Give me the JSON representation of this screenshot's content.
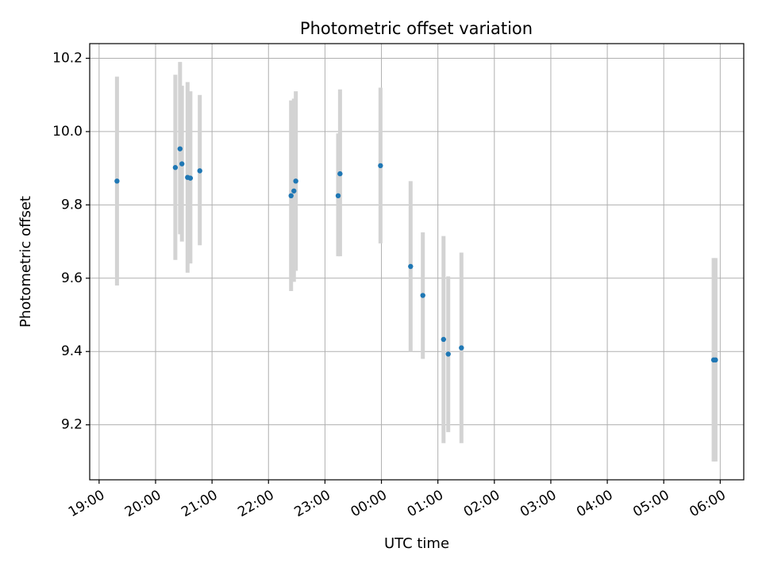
{
  "chart_data": {
    "type": "scatter",
    "title": "Photometric offset variation",
    "xlabel": "UTC time",
    "ylabel": "Photometric offset",
    "x_axis_kind": "time (hours, UTC)",
    "xlim": [
      "18:50",
      "06:25"
    ],
    "ylim": [
      9.05,
      10.24
    ],
    "grid": true,
    "x_ticks": [
      "19:00",
      "20:00",
      "21:00",
      "22:00",
      "23:00",
      "00:00",
      "01:00",
      "02:00",
      "03:00",
      "04:00",
      "05:00",
      "06:00"
    ],
    "y_ticks": [
      9.2,
      9.4,
      9.6,
      9.8,
      10.0,
      10.2
    ],
    "marker_color": "#1f77b4",
    "errorbar_color": "#d3d3d3",
    "points": [
      {
        "x": "19:19",
        "y": 9.865,
        "ylow": 9.58,
        "yhigh": 10.15
      },
      {
        "x": "20:21",
        "y": 9.902,
        "ylow": 9.65,
        "yhigh": 10.155
      },
      {
        "x": "20:26",
        "y": 9.953,
        "ylow": 9.72,
        "yhigh": 10.19
      },
      {
        "x": "20:28",
        "y": 9.912,
        "ylow": 9.7,
        "yhigh": 10.125
      },
      {
        "x": "20:34",
        "y": 9.875,
        "ylow": 9.615,
        "yhigh": 10.135
      },
      {
        "x": "20:37",
        "y": 9.873,
        "ylow": 9.64,
        "yhigh": 10.11
      },
      {
        "x": "20:47",
        "y": 9.893,
        "ylow": 9.69,
        "yhigh": 10.1
      },
      {
        "x": "22:24",
        "y": 9.825,
        "ylow": 9.565,
        "yhigh": 10.085
      },
      {
        "x": "22:27",
        "y": 9.838,
        "ylow": 9.59,
        "yhigh": 10.09
      },
      {
        "x": "22:29",
        "y": 9.865,
        "ylow": 9.62,
        "yhigh": 10.11
      },
      {
        "x": "23:14",
        "y": 9.825,
        "ylow": 9.66,
        "yhigh": 9.995
      },
      {
        "x": "23:16",
        "y": 9.885,
        "ylow": 9.66,
        "yhigh": 10.115
      },
      {
        "x": "23:59",
        "y": 9.907,
        "ylow": 9.695,
        "yhigh": 10.12
      },
      {
        "x": "00:31",
        "y": 9.632,
        "ylow": 9.4,
        "yhigh": 9.865
      },
      {
        "x": "00:44",
        "y": 9.553,
        "ylow": 9.38,
        "yhigh": 9.725
      },
      {
        "x": "01:06",
        "y": 9.433,
        "ylow": 9.15,
        "yhigh": 9.715
      },
      {
        "x": "01:11",
        "y": 9.393,
        "ylow": 9.18,
        "yhigh": 9.605
      },
      {
        "x": "01:25",
        "y": 9.41,
        "ylow": 9.15,
        "yhigh": 9.67
      },
      {
        "x": "05:53",
        "y": 9.377,
        "ylow": 9.1,
        "yhigh": 9.655
      },
      {
        "x": "05:55",
        "y": 9.377,
        "ylow": 9.1,
        "yhigh": 9.655
      }
    ]
  }
}
